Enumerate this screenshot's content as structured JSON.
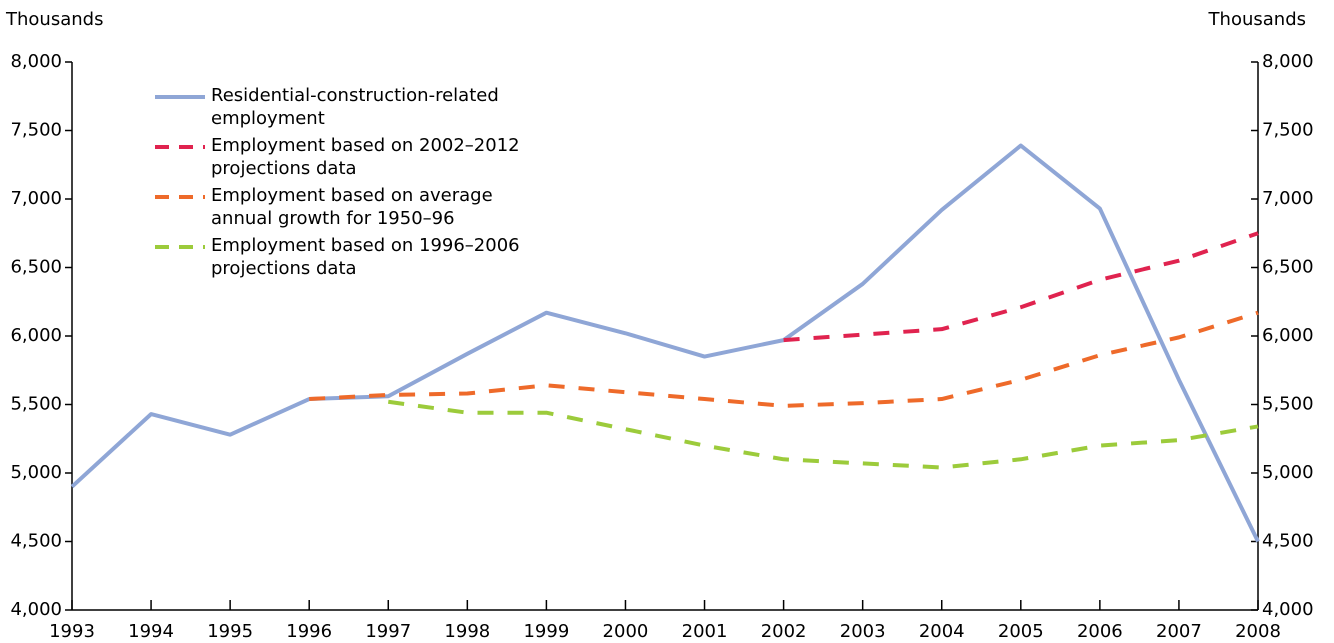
{
  "chart_data": {
    "type": "line",
    "y_label": "Thousands",
    "y2_label": "Thousands",
    "x": [
      1993,
      1994,
      1995,
      1996,
      1997,
      1998,
      1999,
      2000,
      2001,
      2002,
      2003,
      2004,
      2005,
      2006,
      2007,
      2008
    ],
    "xlim": [
      1993,
      2008
    ],
    "xticks": [
      1993,
      1994,
      1995,
      1996,
      1997,
      1998,
      1999,
      2000,
      2001,
      2002,
      2003,
      2004,
      2005,
      2006,
      2007,
      2008
    ],
    "ylim": [
      4000,
      8000
    ],
    "yticks": [
      {
        "value": 4000,
        "label": "4,000"
      },
      {
        "value": 4500,
        "label": "4,500"
      },
      {
        "value": 5000,
        "label": "5,000"
      },
      {
        "value": 5500,
        "label": "5,500"
      },
      {
        "value": 6000,
        "label": "6,000"
      },
      {
        "value": 6500,
        "label": "6,500"
      },
      {
        "value": 7000,
        "label": "7,000"
      },
      {
        "value": 7500,
        "label": "7,500"
      },
      {
        "value": 8000,
        "label": "8,000"
      }
    ],
    "y2lim": [
      4000,
      8000
    ],
    "y2ticks": [
      {
        "value": 4000,
        "label": "4,000"
      },
      {
        "value": 4500,
        "label": "4,500"
      },
      {
        "value": 5000,
        "label": "5,000"
      },
      {
        "value": 5500,
        "label": "5,500"
      },
      {
        "value": 6000,
        "label": "6,000"
      },
      {
        "value": 6500,
        "label": "6,500"
      },
      {
        "value": 7000,
        "label": "7,000"
      },
      {
        "value": 7500,
        "label": "7,500"
      },
      {
        "value": 8000,
        "label": "8,000"
      }
    ],
    "legend": "upper left",
    "series": [
      {
        "name": "Residential-construction-related employment",
        "color": "#8fa6d6",
        "dashed": false,
        "values": [
          4900,
          5430,
          5280,
          5540,
          5560,
          5870,
          6170,
          6020,
          5850,
          5970,
          6380,
          6920,
          7390,
          6930,
          5680,
          4500
        ]
      },
      {
        "name": "Employment based on 2002–2012 projections data",
        "color": "#e0234f",
        "dashed": true,
        "values": [
          null,
          null,
          null,
          null,
          null,
          null,
          null,
          null,
          null,
          5970,
          6010,
          6050,
          6210,
          6410,
          6550,
          6750
        ]
      },
      {
        "name": "Employment based on average annual growth for 1950–96",
        "color": "#ee6a2a",
        "dashed": true,
        "values": [
          null,
          null,
          null,
          5540,
          5570,
          5580,
          5640,
          5590,
          5540,
          5490,
          5510,
          5540,
          5680,
          5860,
          5990,
          6170
        ]
      },
      {
        "name": "Employment based on 1996–2006 projections data",
        "color": "#9ccb3b",
        "dashed": true,
        "values": [
          null,
          null,
          null,
          null,
          5520,
          5440,
          5440,
          5320,
          5200,
          5100,
          5070,
          5040,
          5100,
          5200,
          5240,
          5340
        ]
      }
    ]
  }
}
